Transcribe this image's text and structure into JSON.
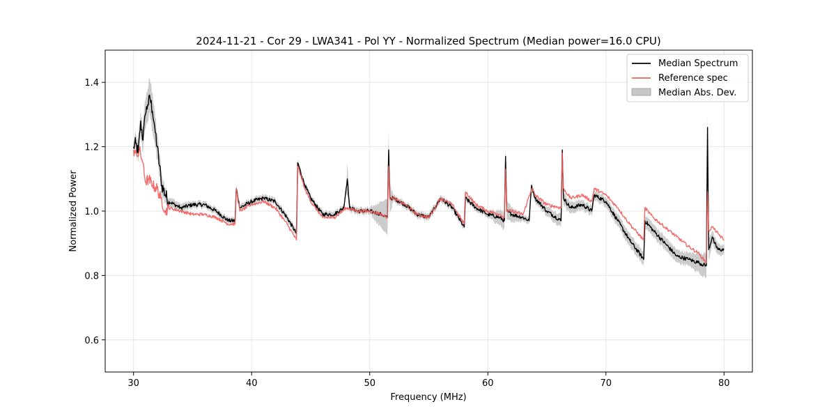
{
  "chart_data": {
    "type": "line",
    "title": "2024-11-21 - Cor 29 - LWA341 - Pol YY - Normalized Spectrum (Median power=16.0 CPU)",
    "xlabel": "Frequency (MHz)",
    "ylabel": "Normalized Power",
    "xlim": [
      27.6,
      82.4
    ],
    "ylim": [
      0.5,
      1.5
    ],
    "xticks": [
      30,
      40,
      50,
      60,
      70,
      80
    ],
    "yticks": [
      0.6,
      0.8,
      1.0,
      1.2,
      1.4
    ],
    "xtick_labels": [
      "30",
      "40",
      "50",
      "60",
      "70",
      "80"
    ],
    "ytick_labels": [
      "0.6",
      "0.8",
      "1.0",
      "1.2",
      "1.4"
    ],
    "grid": true,
    "legend_position": "top-right",
    "series": [
      {
        "name": "Median Spectrum",
        "color": "#000000",
        "x": [
          30.0,
          30.2,
          30.4,
          30.6,
          30.8,
          31.0,
          31.2,
          31.4,
          31.6,
          31.8,
          32.0,
          32.2,
          32.4,
          32.7,
          33.0,
          33.5,
          34.0,
          35.0,
          36.0,
          37.0,
          38.0,
          38.6,
          38.7,
          39.0,
          40.0,
          41.0,
          42.0,
          43.0,
          43.8,
          43.9,
          44.5,
          45.0,
          46.0,
          47.0,
          47.8,
          48.1,
          48.3,
          49.0,
          50.0,
          51.0,
          51.5,
          51.6,
          51.7,
          52.0,
          53.0,
          54.0,
          55.0,
          56.0,
          57.0,
          58.0,
          58.1,
          59.0,
          60.0,
          61.0,
          61.4,
          61.5,
          61.6,
          62.0,
          63.0,
          63.5,
          63.7,
          64.0,
          65.0,
          66.2,
          66.3,
          66.4,
          67.0,
          68.0,
          68.8,
          69.0,
          70.0,
          71.0,
          72.0,
          73.2,
          73.3,
          74.0,
          75.0,
          76.0,
          77.0,
          77.8,
          78.5,
          78.6,
          78.7,
          79.0,
          79.2,
          79.5,
          80.0
        ],
        "values": [
          1.2,
          1.21,
          1.18,
          1.28,
          1.22,
          1.3,
          1.33,
          1.35,
          1.31,
          1.26,
          1.2,
          1.14,
          1.08,
          1.05,
          1.03,
          1.02,
          1.01,
          1.02,
          1.02,
          1.0,
          0.97,
          0.97,
          1.07,
          1.01,
          1.03,
          1.04,
          1.03,
          0.98,
          0.93,
          1.15,
          1.08,
          1.04,
          0.99,
          0.99,
          1.01,
          1.1,
          1.01,
          1.0,
          1.0,
          0.99,
          0.98,
          1.19,
          1.04,
          1.04,
          1.02,
          0.99,
          0.98,
          1.04,
          1.01,
          0.95,
          1.04,
          1.01,
          0.99,
          0.98,
          0.97,
          1.17,
          1.0,
          0.99,
          0.98,
          0.97,
          1.08,
          1.04,
          1.0,
          0.97,
          1.19,
          1.04,
          1.01,
          1.02,
          1.0,
          1.05,
          1.03,
          0.97,
          0.91,
          0.85,
          0.97,
          0.94,
          0.9,
          0.86,
          0.85,
          0.84,
          0.83,
          1.26,
          0.88,
          0.92,
          0.9,
          0.88,
          0.88
        ]
      },
      {
        "name": "Reference spec",
        "color": "#f0605d",
        "x": [
          30.0,
          30.3,
          30.5,
          30.8,
          31.0,
          31.3,
          31.6,
          32.0,
          32.3,
          32.7,
          33.0,
          34.0,
          35.0,
          36.0,
          37.0,
          38.0,
          38.6,
          38.7,
          39.0,
          40.0,
          41.0,
          42.0,
          43.0,
          43.8,
          43.9,
          44.5,
          45.0,
          46.0,
          47.0,
          48.0,
          49.0,
          50.0,
          51.0,
          51.5,
          51.6,
          51.7,
          52.0,
          53.0,
          54.0,
          55.0,
          56.0,
          57.0,
          58.0,
          58.1,
          59.0,
          60.0,
          61.0,
          61.4,
          61.5,
          61.6,
          62.0,
          63.0,
          63.7,
          64.0,
          65.0,
          66.2,
          66.3,
          66.4,
          67.0,
          68.0,
          68.8,
          69.0,
          70.0,
          71.0,
          72.0,
          73.2,
          73.3,
          74.0,
          75.0,
          76.0,
          77.0,
          77.8,
          78.5,
          78.6,
          78.7,
          79.0,
          79.5,
          80.0
        ],
        "values": [
          1.19,
          1.17,
          1.19,
          1.15,
          1.09,
          1.1,
          1.08,
          1.07,
          1.04,
          1.0,
          1.01,
          1.0,
          0.99,
          0.99,
          0.98,
          0.96,
          0.96,
          1.07,
          1.0,
          1.02,
          1.03,
          1.01,
          0.96,
          0.91,
          1.14,
          1.07,
          1.03,
          0.98,
          0.98,
          1.01,
          1.0,
          1.0,
          0.99,
          0.98,
          1.14,
          1.04,
          1.04,
          1.02,
          0.99,
          0.98,
          1.04,
          1.02,
          0.96,
          1.06,
          1.02,
          1.0,
          0.99,
          0.98,
          1.13,
          1.0,
          1.0,
          0.99,
          1.07,
          1.05,
          1.02,
          1.01,
          1.18,
          1.07,
          1.04,
          1.05,
          1.03,
          1.07,
          1.05,
          1.01,
          0.96,
          0.91,
          1.01,
          0.98,
          0.95,
          0.92,
          0.89,
          0.87,
          0.84,
          1.06,
          0.94,
          0.95,
          0.93,
          0.91
        ]
      },
      {
        "name": "Median Abs. Dev.",
        "color": "#808080",
        "x": [
          30.0,
          30.4,
          30.8,
          31.2,
          31.6,
          32.0,
          32.4,
          33.0,
          35.0,
          38.0,
          40.0,
          43.8,
          44.5,
          46.0,
          48.0,
          48.1,
          48.3,
          50.0,
          51.6,
          52.0,
          55.0,
          58.0,
          60.0,
          61.5,
          63.0,
          65.0,
          66.3,
          68.0,
          70.0,
          71.5,
          73.2,
          75.0,
          77.0,
          78.6,
          79.0,
          80.0
        ],
        "values": [
          0.02,
          0.03,
          0.04,
          0.05,
          0.06,
          0.04,
          0.03,
          0.015,
          0.01,
          0.01,
          0.01,
          0.01,
          0.01,
          0.01,
          0.01,
          0.05,
          0.01,
          0.01,
          0.06,
          0.01,
          0.01,
          0.01,
          0.01,
          0.03,
          0.01,
          0.015,
          0.02,
          0.015,
          0.015,
          0.02,
          0.02,
          0.02,
          0.02,
          0.04,
          0.02,
          0.015
        ]
      }
    ]
  }
}
